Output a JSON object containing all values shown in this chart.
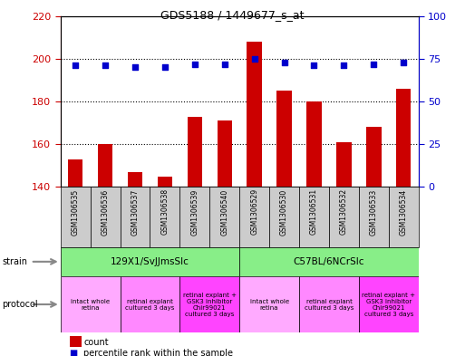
{
  "title": "GDS5188 / 1449677_s_at",
  "samples": [
    "GSM1306535",
    "GSM1306536",
    "GSM1306537",
    "GSM1306538",
    "GSM1306539",
    "GSM1306540",
    "GSM1306529",
    "GSM1306530",
    "GSM1306531",
    "GSM1306532",
    "GSM1306533",
    "GSM1306534"
  ],
  "count_values": [
    153,
    160,
    147,
    145,
    173,
    171,
    208,
    185,
    180,
    161,
    168,
    186
  ],
  "percentile_values": [
    71,
    71,
    70,
    70,
    72,
    72,
    75,
    73,
    71,
    71,
    72,
    73
  ],
  "ylim_left": [
    140,
    220
  ],
  "ylim_right": [
    0,
    100
  ],
  "yticks_left": [
    140,
    160,
    180,
    200,
    220
  ],
  "yticks_right": [
    0,
    25,
    50,
    75,
    100
  ],
  "bar_color": "#cc0000",
  "dot_color": "#0000cc",
  "bar_width": 0.5,
  "strain_labels": [
    "129X1/SvJJmsSlc",
    "C57BL/6NCrSlc"
  ],
  "strain_ranges": [
    [
      0,
      5
    ],
    [
      6,
      11
    ]
  ],
  "strain_color": "#88ee88",
  "protocol_groups": [
    {
      "label": "intact whole\nretina",
      "range": [
        0,
        1
      ],
      "color": "#ffaaff"
    },
    {
      "label": "retinal explant\ncultured 3 days",
      "range": [
        2,
        3
      ],
      "color": "#ff88ff"
    },
    {
      "label": "retinal explant +\nGSK3 inhibitor\nChir99021\ncultured 3 days",
      "range": [
        4,
        5
      ],
      "color": "#ff44ff"
    },
    {
      "label": "intact whole\nretina",
      "range": [
        6,
        7
      ],
      "color": "#ffaaff"
    },
    {
      "label": "retinal explant\ncultured 3 days",
      "range": [
        8,
        9
      ],
      "color": "#ff88ff"
    },
    {
      "label": "retinal explant +\nGSK3 inhibitor\nChir99021\ncultured 3 days",
      "range": [
        10,
        11
      ],
      "color": "#ff44ff"
    }
  ],
  "left_axis_color": "#cc0000",
  "right_axis_color": "#0000cc",
  "sample_bg_color": "#cccccc",
  "arrow_color": "#888888",
  "grid_yticks": [
    160,
    180,
    200
  ],
  "figsize": [
    5.13,
    3.93
  ],
  "dpi": 100
}
